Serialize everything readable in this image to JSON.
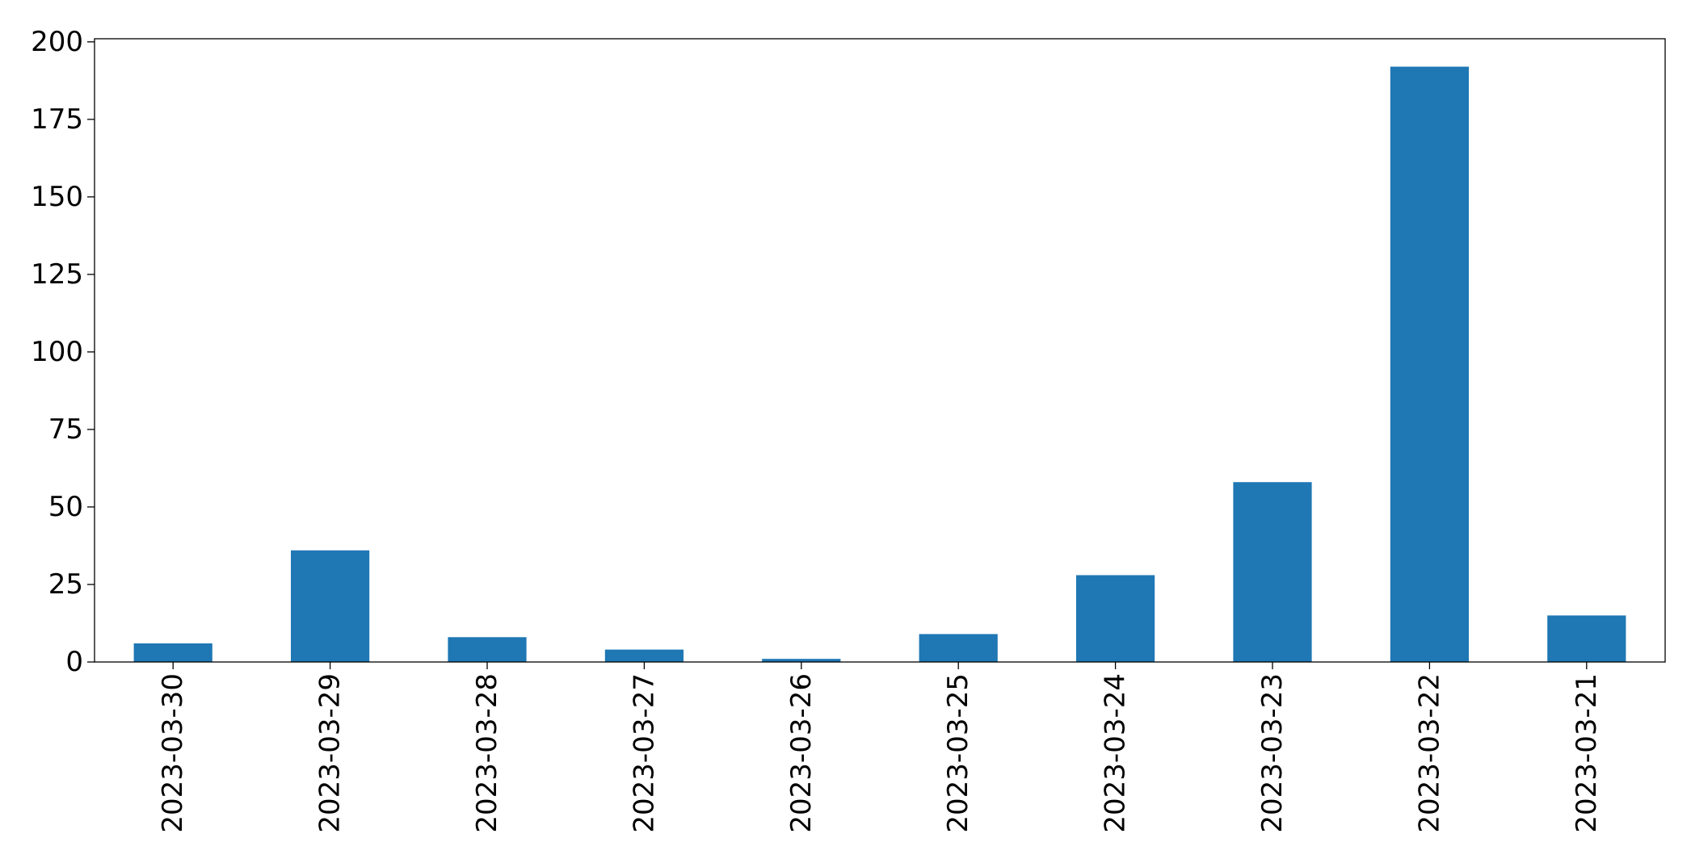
{
  "chart_data": {
    "type": "bar",
    "title": "",
    "xlabel": "",
    "ylabel": "",
    "categories": [
      "2023-03-30",
      "2023-03-29",
      "2023-03-28",
      "2023-03-27",
      "2023-03-26",
      "2023-03-25",
      "2023-03-24",
      "2023-03-23",
      "2023-03-22",
      "2023-03-21"
    ],
    "values": [
      6,
      36,
      8,
      4,
      1,
      9,
      28,
      58,
      192,
      15
    ],
    "ylim": [
      0,
      201
    ],
    "yticks": [
      0,
      25,
      50,
      75,
      100,
      125,
      150,
      175,
      200
    ],
    "ytick_labels": [
      "0",
      "25",
      "50",
      "75",
      "100",
      "125",
      "150",
      "175",
      "200"
    ],
    "xtick_rotation": "vertical",
    "grid": false,
    "legend": "none",
    "bar_color": "#1f77b4"
  }
}
